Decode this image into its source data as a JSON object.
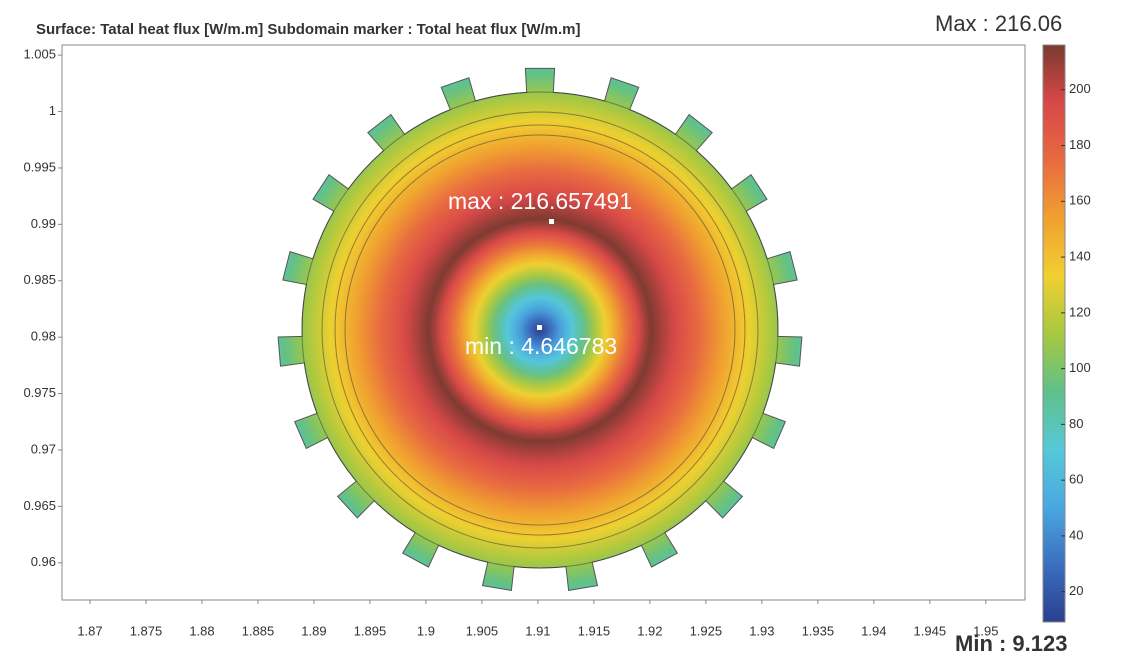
{
  "chart_data": {
    "type": "surface",
    "title": "Surface: Tatal heat flux [W/m.m]  Subdomain marker : Total heat flux [W/m.m]",
    "max_label": "Max : 216.06",
    "min_label": "Min : 9.123",
    "annotations": [
      "max : 216.657491",
      "min : 4.646783"
    ],
    "xlim": [
      1.8675,
      1.9535
    ],
    "xticks": [
      1.87,
      1.875,
      1.88,
      1.885,
      1.89,
      1.895,
      1.9,
      1.905,
      1.91,
      1.915,
      1.92,
      1.925,
      1.93,
      1.935,
      1.94,
      1.945,
      1.95
    ],
    "ylim": [
      0.9567,
      1.0059
    ],
    "yticks": [
      0.96,
      0.965,
      0.97,
      0.975,
      0.98,
      0.985,
      0.99,
      0.995,
      1,
      1.005
    ],
    "clim": [
      9.123,
      216.06
    ],
    "cticks": [
      20,
      40,
      60,
      80,
      100,
      120,
      140,
      160,
      180,
      200
    ],
    "colormap": [
      "#2b3f8f",
      "#3b6fc0",
      "#4aa8e0",
      "#56c8d8",
      "#5fc08a",
      "#a8c840",
      "#f0d030",
      "#f0a030",
      "#e86a40",
      "#d84848",
      "#7a3a30"
    ]
  }
}
